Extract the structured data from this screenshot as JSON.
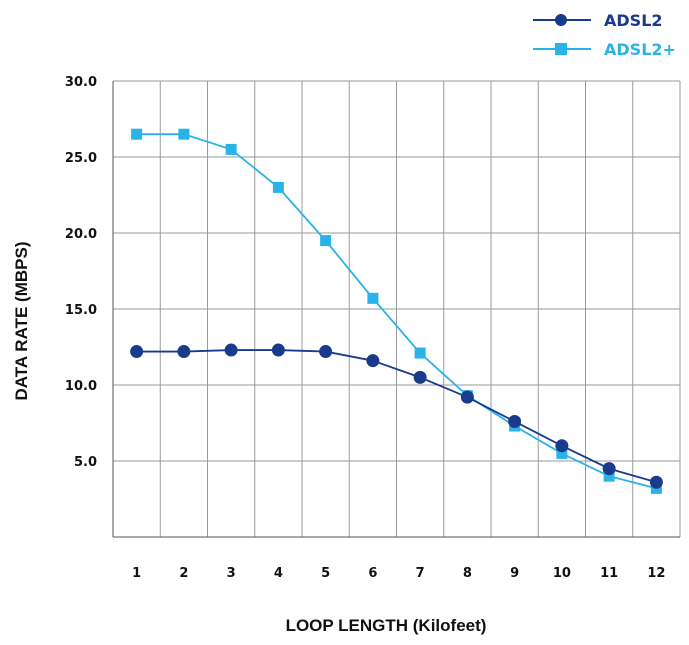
{
  "chart_data": {
    "type": "line",
    "xlabel": "LOOP LENGTH (Kilofeet)",
    "ylabel": "DATA RATE (MBPS)",
    "categories": [
      "1",
      "2",
      "3",
      "4",
      "5",
      "6",
      "7",
      "8",
      "9",
      "10",
      "11",
      "12"
    ],
    "y_ticks": [
      "5.0",
      "10.0",
      "15.0",
      "20.0",
      "25.0",
      "30.0"
    ],
    "ylim": [
      0,
      30
    ],
    "grid": true,
    "legend_position": "top-right",
    "series": [
      {
        "name": "ADSL2",
        "marker": "circle",
        "color": "#1a3a8c",
        "label_color": "#1a3a8c",
        "values": [
          12.2,
          12.2,
          12.3,
          12.3,
          12.2,
          11.6,
          10.5,
          9.2,
          7.6,
          6.0,
          4.5,
          3.6
        ]
      },
      {
        "name": "ADSL2+",
        "marker": "square",
        "color": "#29b3e8",
        "label_color": "#29b3e8",
        "values": [
          26.5,
          26.5,
          25.5,
          23.0,
          19.5,
          15.7,
          12.1,
          9.3,
          7.3,
          5.5,
          4.0,
          3.2
        ]
      }
    ]
  }
}
